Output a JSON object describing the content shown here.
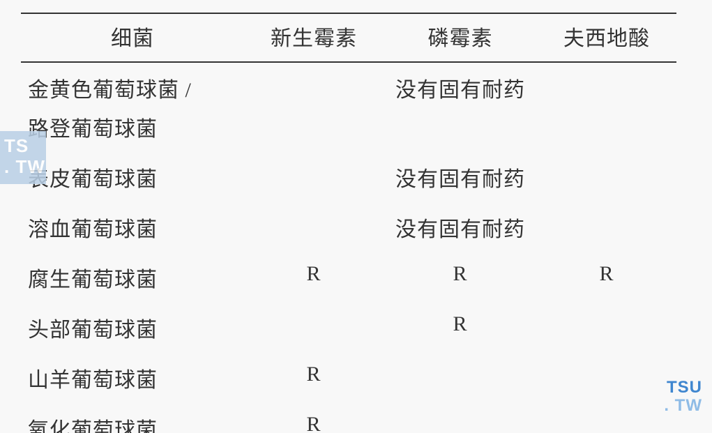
{
  "table": {
    "columns": [
      "细菌",
      "新生霉素",
      "磷霉素",
      "夫西地酸"
    ],
    "rows": [
      {
        "name_line1": "金黄色葡萄球菌 /",
        "name_line2": "路登葡萄球菌",
        "merged_note": "没有固有耐药",
        "cells": [
          "",
          "",
          ""
        ]
      },
      {
        "name_line1": "表皮葡萄球菌",
        "name_line2": "",
        "merged_note": "没有固有耐药",
        "cells": [
          "",
          "",
          ""
        ]
      },
      {
        "name_line1": "溶血葡萄球菌",
        "name_line2": "",
        "merged_note": "没有固有耐药",
        "cells": [
          "",
          "",
          ""
        ]
      },
      {
        "name_line1": "腐生葡萄球菌",
        "name_line2": "",
        "merged_note": "",
        "cells": [
          "R",
          "R",
          "R"
        ]
      },
      {
        "name_line1": "头部葡萄球菌",
        "name_line2": "",
        "merged_note": "",
        "cells": [
          "",
          "R",
          ""
        ]
      },
      {
        "name_line1": "山羊葡萄球菌",
        "name_line2": "",
        "merged_note": "",
        "cells": [
          "R",
          "",
          ""
        ]
      },
      {
        "name_line1": "氧化葡萄球菌",
        "name_line2": "",
        "merged_note": "",
        "cells": [
          "R",
          "",
          ""
        ]
      }
    ],
    "border_color": "#333333",
    "background_color": "#f8f8f8",
    "text_color": "#333333",
    "font_size_pt": 22
  },
  "watermark_left": {
    "line1": "TS",
    "line2": ". TW",
    "bg_color": "#b9d0e6",
    "text_color": "#ffffff"
  },
  "watermark_right": {
    "line1": "TSU",
    "line2": ". TW",
    "color_top": "#3f86cf",
    "color_bottom": "#8fbce6"
  }
}
